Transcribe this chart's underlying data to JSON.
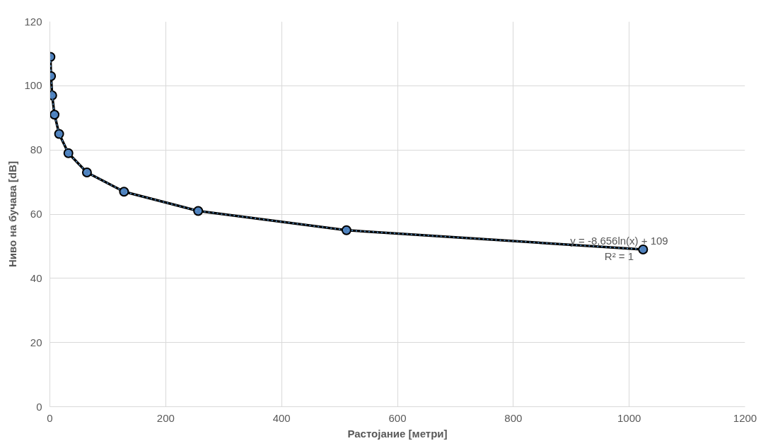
{
  "chart_data": {
    "type": "line",
    "xlabel": "Растојание [метри]",
    "ylabel": "Ниво на бучава [dB]",
    "xlim": [
      0,
      1200
    ],
    "xticks": [
      0,
      200,
      400,
      600,
      800,
      1000,
      1200
    ],
    "ylim": [
      0,
      120
    ],
    "yticks": [
      0,
      20,
      40,
      60,
      80,
      100,
      120
    ],
    "grid": true,
    "series": [
      {
        "color": "#4f81bd",
        "marker": "circle",
        "line_style": "solid",
        "x": [
          1,
          2,
          4,
          8,
          16,
          32,
          64,
          128,
          256,
          512,
          1024
        ],
        "values": [
          109,
          103,
          97,
          91,
          85,
          79,
          73,
          67,
          61,
          55,
          49
        ]
      },
      {
        "color": "#5b9bd5",
        "marker": "none",
        "line_style": "dotted",
        "x": [
          1,
          2,
          4,
          8,
          16,
          32,
          64,
          128,
          256,
          512,
          1024
        ],
        "values": [
          109,
          103,
          97,
          91,
          85,
          79,
          73,
          67,
          61,
          55,
          49
        ]
      }
    ],
    "annotations": [
      "y = -8,656ln(x) + 109",
      "R² = 1"
    ]
  }
}
